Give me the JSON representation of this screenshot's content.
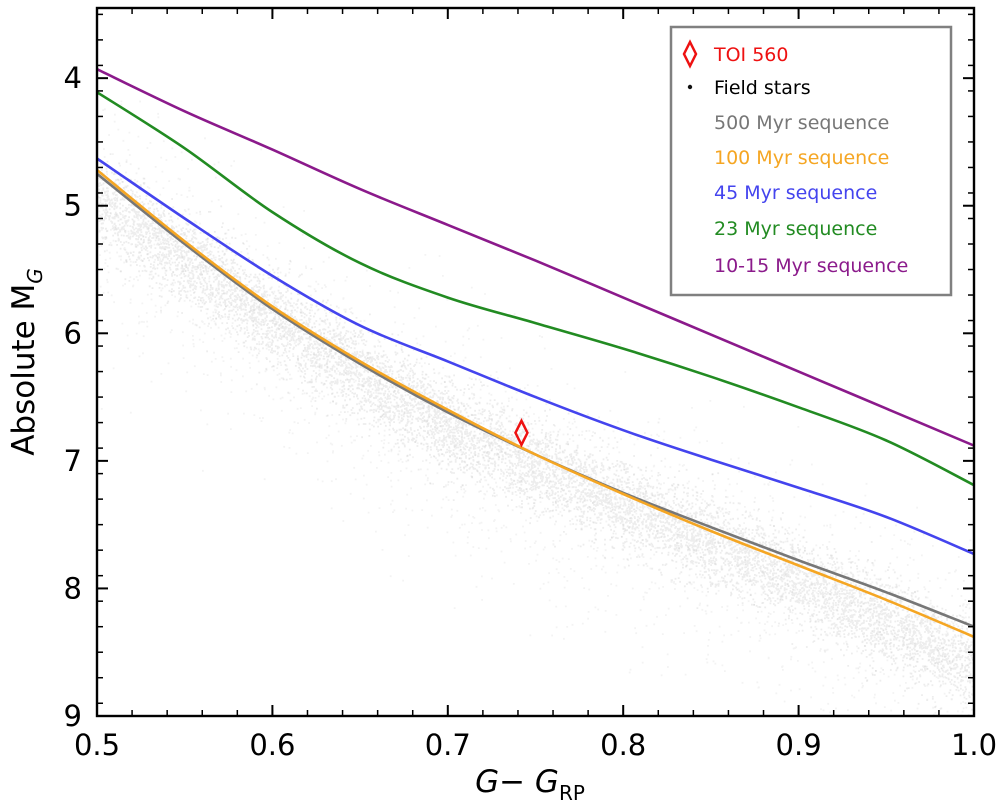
{
  "chart_data": {
    "type": "scatter",
    "title": "",
    "xlabel": {
      "main": "G− G",
      "sub": "RP"
    },
    "ylabel": {
      "main": "Absolute M",
      "sub": "G"
    },
    "xlim": [
      0.5,
      1.0
    ],
    "ylim": [
      9.0,
      3.45
    ],
    "x_ticks": [
      0.5,
      0.6,
      0.7,
      0.8,
      0.9,
      1.0
    ],
    "x_tick_labels": [
      "0.5",
      "0.6",
      "0.7",
      "0.8",
      "0.9",
      "1.0"
    ],
    "y_ticks": [
      4,
      5,
      6,
      7,
      8,
      9
    ],
    "y_tick_labels": [
      "4",
      "5",
      "6",
      "7",
      "8",
      "9"
    ],
    "grid": false,
    "legend_position": "top-right",
    "target": {
      "name": "TOI 560",
      "x": 0.742,
      "y": 6.78,
      "color": "#ee1111",
      "marker": "thin-diamond"
    },
    "field_stars": {
      "name": "Field stars",
      "color": "#111111",
      "ridge_x": [
        0.5,
        0.6,
        0.7,
        0.8,
        0.9,
        1.0
      ],
      "ridge_y": [
        4.9,
        5.85,
        6.7,
        7.3,
        7.9,
        8.55
      ]
    },
    "series": [
      {
        "name": "500 Myr sequence",
        "color": "#777777",
        "x": [
          0.5,
          0.55,
          0.6,
          0.65,
          0.7,
          0.75,
          0.8,
          0.85,
          0.9,
          0.95,
          1.0
        ],
        "y": [
          4.75,
          5.3,
          5.81,
          6.24,
          6.62,
          6.95,
          7.25,
          7.52,
          7.78,
          8.03,
          8.3
        ]
      },
      {
        "name": "100 Myr sequence",
        "color": "#f5a623",
        "x": [
          0.5,
          0.55,
          0.6,
          0.65,
          0.7,
          0.75,
          0.8,
          0.85,
          0.9,
          0.95,
          1.0
        ],
        "y": [
          4.72,
          5.28,
          5.79,
          6.22,
          6.6,
          6.95,
          7.26,
          7.55,
          7.82,
          8.09,
          8.38
        ]
      },
      {
        "name": "45 Myr sequence",
        "color": "#4444ee",
        "x": [
          0.5,
          0.55,
          0.6,
          0.65,
          0.7,
          0.75,
          0.8,
          0.85,
          0.9,
          0.95,
          1.0
        ],
        "y": [
          4.63,
          5.1,
          5.55,
          5.94,
          6.22,
          6.5,
          6.76,
          6.99,
          7.21,
          7.44,
          7.73
        ]
      },
      {
        "name": "23 Myr sequence",
        "color": "#228b22",
        "x": [
          0.5,
          0.55,
          0.6,
          0.65,
          0.7,
          0.75,
          0.8,
          0.85,
          0.9,
          0.95,
          1.0
        ],
        "y": [
          4.11,
          4.55,
          5.05,
          5.45,
          5.72,
          5.92,
          6.12,
          6.34,
          6.58,
          6.84,
          7.19
        ]
      },
      {
        "name": "10-15 Myr sequence",
        "color": "#8b1a8b",
        "x": [
          0.5,
          0.55,
          0.6,
          0.65,
          0.7,
          0.75,
          0.8,
          0.85,
          0.9,
          0.95,
          1.0
        ],
        "y": [
          3.93,
          4.26,
          4.56,
          4.87,
          5.15,
          5.43,
          5.72,
          6.01,
          6.3,
          6.59,
          6.88
        ]
      }
    ]
  }
}
